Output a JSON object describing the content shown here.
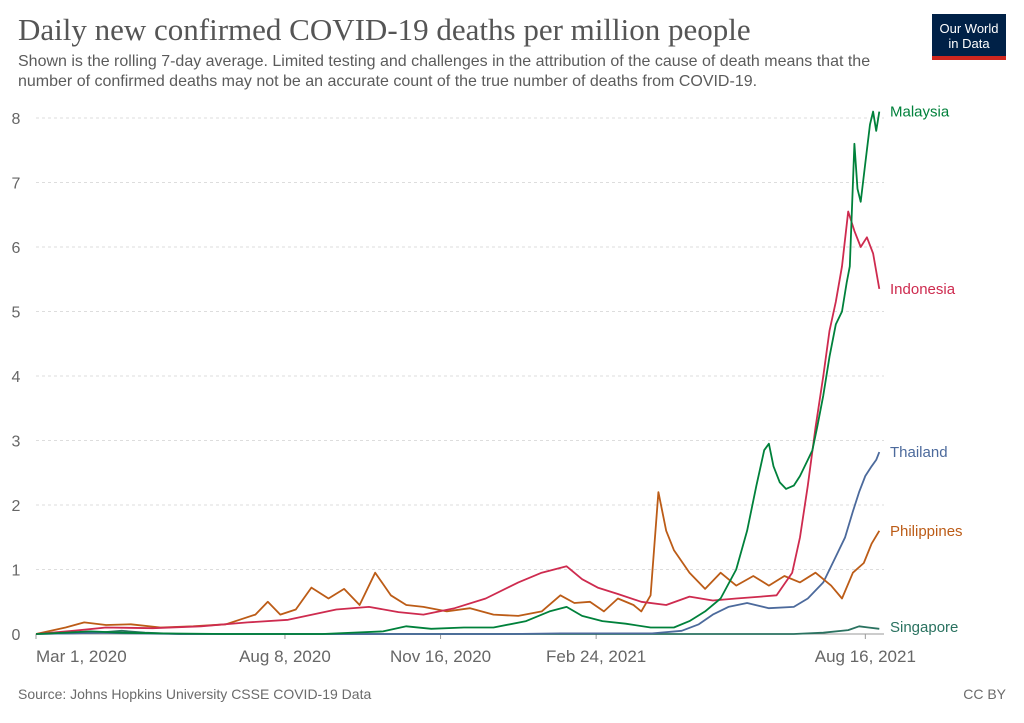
{
  "header": {
    "title": "Daily new confirmed COVID-19 deaths per million people",
    "subtitle": "Shown is the rolling 7-day average. Limited testing and challenges in the attribution of the cause of death means that the number of confirmed deaths may not be an accurate count of the true number of deaths from COVID-19.",
    "logo_line1": "Our World",
    "logo_line2": "in Data"
  },
  "footer": {
    "source": "Source: Johns Hopkins University CSSE COVID-19 Data",
    "license": "CC BY"
  },
  "colors": {
    "Malaysia": "#00813b",
    "Indonesia": "#ce2b4f",
    "Thailand": "#4c6a9c",
    "Philippines": "#bc5c17",
    "Singapore": "#2a7260",
    "grid": "#dddddd",
    "axis_text": "#666666"
  },
  "chart_data": {
    "type": "line",
    "title": "Daily new confirmed COVID-19 deaths per million people",
    "xlabel": "",
    "ylabel": "",
    "x_axis_type": "date",
    "xlim": [
      "2020-03-01",
      "2021-08-28"
    ],
    "ylim": [
      0,
      8
    ],
    "y_ticks": [
      0,
      1,
      2,
      3,
      4,
      5,
      6,
      7,
      8
    ],
    "x_ticks": [
      {
        "date": "2020-03-01",
        "label": "Mar 1, 2020"
      },
      {
        "date": "2020-08-08",
        "label": "Aug 8, 2020"
      },
      {
        "date": "2020-11-16",
        "label": "Nov 16, 2020"
      },
      {
        "date": "2021-02-24",
        "label": "Feb 24, 2021"
      },
      {
        "date": "2021-08-16",
        "label": "Aug 16, 2021"
      }
    ],
    "grid": "horizontal dashed",
    "legend": "labels at line ends (right)",
    "series": [
      {
        "name": "Malaysia",
        "points": [
          [
            "2020-03-01",
            0
          ],
          [
            "2020-03-20",
            0.02
          ],
          [
            "2020-04-05",
            0.04
          ],
          [
            "2020-04-25",
            0.02
          ],
          [
            "2020-05-20",
            0.01
          ],
          [
            "2020-07-01",
            0
          ],
          [
            "2020-09-01",
            0
          ],
          [
            "2020-10-10",
            0.04
          ],
          [
            "2020-10-25",
            0.12
          ],
          [
            "2020-11-10",
            0.08
          ],
          [
            "2020-12-01",
            0.1
          ],
          [
            "2020-12-20",
            0.1
          ],
          [
            "2021-01-10",
            0.2
          ],
          [
            "2021-01-25",
            0.35
          ],
          [
            "2021-02-05",
            0.42
          ],
          [
            "2021-02-15",
            0.28
          ],
          [
            "2021-02-28",
            0.2
          ],
          [
            "2021-03-15",
            0.16
          ],
          [
            "2021-03-31",
            0.1
          ],
          [
            "2021-04-15",
            0.1
          ],
          [
            "2021-04-25",
            0.2
          ],
          [
            "2021-05-05",
            0.35
          ],
          [
            "2021-05-15",
            0.55
          ],
          [
            "2021-05-25",
            1.0
          ],
          [
            "2021-06-01",
            1.6
          ],
          [
            "2021-06-07",
            2.3
          ],
          [
            "2021-06-12",
            2.85
          ],
          [
            "2021-06-15",
            2.95
          ],
          [
            "2021-06-18",
            2.6
          ],
          [
            "2021-06-22",
            2.35
          ],
          [
            "2021-06-26",
            2.25
          ],
          [
            "2021-07-01",
            2.3
          ],
          [
            "2021-07-05",
            2.45
          ],
          [
            "2021-07-10",
            2.7
          ],
          [
            "2021-07-13",
            2.85
          ],
          [
            "2021-07-16",
            3.2
          ],
          [
            "2021-07-20",
            3.7
          ],
          [
            "2021-07-24",
            4.3
          ],
          [
            "2021-07-28",
            4.8
          ],
          [
            "2021-08-01",
            5.0
          ],
          [
            "2021-08-04",
            5.45
          ],
          [
            "2021-08-06",
            5.7
          ],
          [
            "2021-08-09",
            7.6
          ],
          [
            "2021-08-11",
            6.9
          ],
          [
            "2021-08-13",
            6.7
          ],
          [
            "2021-08-16",
            7.3
          ],
          [
            "2021-08-19",
            7.9
          ],
          [
            "2021-08-21",
            8.1
          ],
          [
            "2021-08-23",
            7.8
          ],
          [
            "2021-08-25",
            8.1
          ]
        ]
      },
      {
        "name": "Indonesia",
        "points": [
          [
            "2020-03-01",
            0
          ],
          [
            "2020-03-25",
            0.05
          ],
          [
            "2020-04-15",
            0.1
          ],
          [
            "2020-05-15",
            0.09
          ],
          [
            "2020-06-15",
            0.12
          ],
          [
            "2020-07-15",
            0.18
          ],
          [
            "2020-08-10",
            0.22
          ],
          [
            "2020-09-10",
            0.38
          ],
          [
            "2020-10-01",
            0.42
          ],
          [
            "2020-10-20",
            0.34
          ],
          [
            "2020-11-05",
            0.3
          ],
          [
            "2020-11-25",
            0.4
          ],
          [
            "2020-12-15",
            0.55
          ],
          [
            "2021-01-05",
            0.8
          ],
          [
            "2021-01-20",
            0.95
          ],
          [
            "2021-02-05",
            1.05
          ],
          [
            "2021-02-15",
            0.85
          ],
          [
            "2021-02-25",
            0.72
          ],
          [
            "2021-03-10",
            0.62
          ],
          [
            "2021-03-25",
            0.5
          ],
          [
            "2021-04-10",
            0.45
          ],
          [
            "2021-04-25",
            0.58
          ],
          [
            "2021-05-10",
            0.52
          ],
          [
            "2021-05-25",
            0.55
          ],
          [
            "2021-06-10",
            0.58
          ],
          [
            "2021-06-20",
            0.6
          ],
          [
            "2021-06-30",
            0.95
          ],
          [
            "2021-07-05",
            1.5
          ],
          [
            "2021-07-10",
            2.3
          ],
          [
            "2021-07-15",
            3.2
          ],
          [
            "2021-07-20",
            4.0
          ],
          [
            "2021-07-24",
            4.7
          ],
          [
            "2021-07-28",
            5.15
          ],
          [
            "2021-08-01",
            5.7
          ],
          [
            "2021-08-05",
            6.55
          ],
          [
            "2021-08-09",
            6.25
          ],
          [
            "2021-08-13",
            6.0
          ],
          [
            "2021-08-17",
            6.15
          ],
          [
            "2021-08-21",
            5.9
          ],
          [
            "2021-08-25",
            5.35
          ]
        ]
      },
      {
        "name": "Thailand",
        "points": [
          [
            "2020-03-01",
            0
          ],
          [
            "2020-03-25",
            0.01
          ],
          [
            "2020-04-10",
            0.02
          ],
          [
            "2020-05-01",
            0.01
          ],
          [
            "2020-06-01",
            0
          ],
          [
            "2021-01-01",
            0
          ],
          [
            "2021-02-01",
            0.01
          ],
          [
            "2021-03-01",
            0.01
          ],
          [
            "2021-04-01",
            0.01
          ],
          [
            "2021-04-20",
            0.05
          ],
          [
            "2021-05-01",
            0.15
          ],
          [
            "2021-05-10",
            0.3
          ],
          [
            "2021-05-20",
            0.42
          ],
          [
            "2021-06-01",
            0.48
          ],
          [
            "2021-06-15",
            0.4
          ],
          [
            "2021-07-01",
            0.42
          ],
          [
            "2021-07-10",
            0.55
          ],
          [
            "2021-07-20",
            0.8
          ],
          [
            "2021-07-28",
            1.2
          ],
          [
            "2021-08-03",
            1.5
          ],
          [
            "2021-08-08",
            1.9
          ],
          [
            "2021-08-12",
            2.2
          ],
          [
            "2021-08-16",
            2.45
          ],
          [
            "2021-08-20",
            2.6
          ],
          [
            "2021-08-23",
            2.7
          ],
          [
            "2021-08-25",
            2.82
          ]
        ]
      },
      {
        "name": "Philippines",
        "points": [
          [
            "2020-03-01",
            0
          ],
          [
            "2020-03-20",
            0.1
          ],
          [
            "2020-04-01",
            0.18
          ],
          [
            "2020-04-15",
            0.14
          ],
          [
            "2020-05-01",
            0.15
          ],
          [
            "2020-05-20",
            0.1
          ],
          [
            "2020-06-10",
            0.12
          ],
          [
            "2020-07-01",
            0.15
          ],
          [
            "2020-07-20",
            0.3
          ],
          [
            "2020-07-28",
            0.5
          ],
          [
            "2020-08-05",
            0.3
          ],
          [
            "2020-08-15",
            0.38
          ],
          [
            "2020-08-25",
            0.72
          ],
          [
            "2020-09-05",
            0.55
          ],
          [
            "2020-09-15",
            0.7
          ],
          [
            "2020-09-25",
            0.45
          ],
          [
            "2020-10-05",
            0.95
          ],
          [
            "2020-10-15",
            0.6
          ],
          [
            "2020-10-25",
            0.45
          ],
          [
            "2020-11-05",
            0.42
          ],
          [
            "2020-11-20",
            0.35
          ],
          [
            "2020-12-05",
            0.4
          ],
          [
            "2020-12-20",
            0.3
          ],
          [
            "2021-01-05",
            0.28
          ],
          [
            "2021-01-20",
            0.35
          ],
          [
            "2021-02-01",
            0.6
          ],
          [
            "2021-02-10",
            0.48
          ],
          [
            "2021-02-20",
            0.5
          ],
          [
            "2021-03-01",
            0.35
          ],
          [
            "2021-03-10",
            0.55
          ],
          [
            "2021-03-20",
            0.45
          ],
          [
            "2021-03-25",
            0.35
          ],
          [
            "2021-03-31",
            0.6
          ],
          [
            "2021-04-05",
            2.2
          ],
          [
            "2021-04-10",
            1.6
          ],
          [
            "2021-04-15",
            1.3
          ],
          [
            "2021-04-25",
            0.95
          ],
          [
            "2021-05-05",
            0.7
          ],
          [
            "2021-05-15",
            0.95
          ],
          [
            "2021-05-25",
            0.75
          ],
          [
            "2021-06-05",
            0.9
          ],
          [
            "2021-06-15",
            0.75
          ],
          [
            "2021-06-25",
            0.9
          ],
          [
            "2021-07-05",
            0.8
          ],
          [
            "2021-07-15",
            0.95
          ],
          [
            "2021-07-25",
            0.75
          ],
          [
            "2021-08-01",
            0.55
          ],
          [
            "2021-08-08",
            0.95
          ],
          [
            "2021-08-15",
            1.1
          ],
          [
            "2021-08-20",
            1.4
          ],
          [
            "2021-08-25",
            1.6
          ]
        ]
      },
      {
        "name": "Singapore",
        "points": [
          [
            "2020-03-01",
            0
          ],
          [
            "2020-04-10",
            0.02
          ],
          [
            "2020-04-25",
            0.05
          ],
          [
            "2020-05-10",
            0.02
          ],
          [
            "2020-06-01",
            0
          ],
          [
            "2021-07-01",
            0
          ],
          [
            "2021-07-20",
            0.02
          ],
          [
            "2021-08-05",
            0.06
          ],
          [
            "2021-08-12",
            0.12
          ],
          [
            "2021-08-18",
            0.1
          ],
          [
            "2021-08-25",
            0.08
          ]
        ]
      }
    ]
  }
}
